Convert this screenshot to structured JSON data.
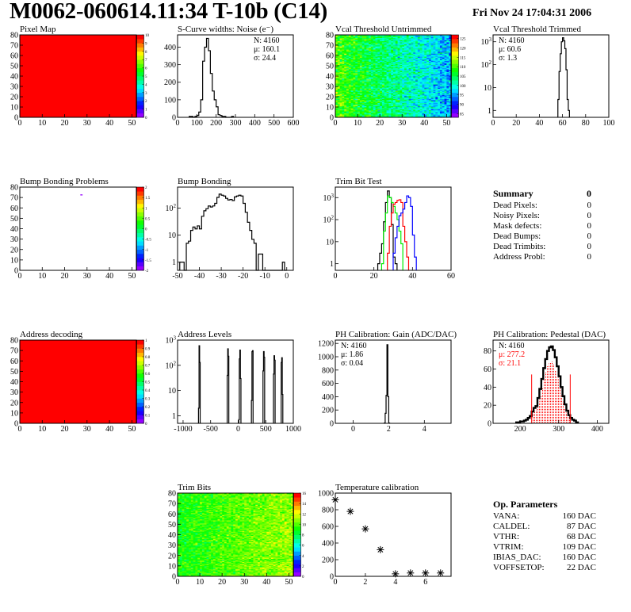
{
  "header": {
    "title": "M0062-060614.11:34 T-10b (C14)",
    "date": "Fri Nov 24 17:04:31 2006"
  },
  "summary": {
    "title": "Summary",
    "total": "0",
    "items": [
      {
        "label": "Dead Pixels:",
        "value": "0"
      },
      {
        "label": "Noisy Pixels:",
        "value": "0"
      },
      {
        "label": "Mask defects:",
        "value": "0"
      },
      {
        "label": "Dead Bumps:",
        "value": "0"
      },
      {
        "label": "Dead Trimbits:",
        "value": "0"
      },
      {
        "label": "Address Probl:",
        "value": "0"
      }
    ]
  },
  "op_parameters": {
    "title": "Op. Parameters",
    "items": [
      {
        "label": "VANA:",
        "value": "160 DAC"
      },
      {
        "label": "CALDEL:",
        "value": "87 DAC"
      },
      {
        "label": "VTHR:",
        "value": "68 DAC"
      },
      {
        "label": "VTRIM:",
        "value": "109 DAC"
      },
      {
        "label": "IBIAS_DAC:",
        "value": "160 DAC"
      },
      {
        "label": "VOFFSETOP:",
        "value": "22 DAC"
      }
    ]
  },
  "colors": {
    "black": "#000000",
    "red": "#ff0000",
    "green": "#00ee00",
    "blue": "#0000ff"
  },
  "chart_data": [
    {
      "id": "pixel-map",
      "type": "heatmap",
      "title": "Pixel Map",
      "nx": 52,
      "ny": 80,
      "xlim": [
        0,
        52
      ],
      "ylim": [
        0,
        80
      ],
      "xticks": [
        0,
        10,
        20,
        30,
        40,
        50
      ],
      "yticks": [
        0,
        10,
        20,
        30,
        40,
        50,
        60,
        70,
        80
      ],
      "zlim": [
        0,
        10
      ],
      "zticks": [
        0,
        1,
        2,
        3,
        4,
        5,
        6,
        7,
        8,
        9,
        10
      ],
      "uniform": 10
    },
    {
      "id": "s-curve-widths",
      "type": "hist",
      "title": "S-Curve widths: Noise (e⁻)",
      "xlim": [
        0,
        600
      ],
      "ylim": [
        0,
        470
      ],
      "xticks": [
        0,
        100,
        200,
        300,
        400,
        500,
        600
      ],
      "yticks": [
        0,
        100,
        200,
        300,
        400
      ],
      "series": [
        {
          "color": "#000000",
          "start": 60,
          "width": 10,
          "values": [
            5,
            5,
            0,
            5,
            10,
            30,
            100,
            320,
            400,
            450,
            380,
            250,
            150,
            100,
            60,
            15,
            10,
            5,
            5,
            0,
            0,
            0,
            5
          ]
        }
      ],
      "stats": {
        "position": "top-right",
        "lines": [
          {
            "text": "N: 4160"
          },
          {
            "text": "μ: 160.1"
          },
          {
            "text": "σ: 24.4"
          }
        ]
      }
    },
    {
      "id": "vcal-threshold-untrimmed",
      "type": "heatmap",
      "title": "Vcal Threshold Untrimmed",
      "nx": 52,
      "ny": 80,
      "xlim": [
        0,
        52
      ],
      "ylim": [
        0,
        80
      ],
      "xticks": [
        0,
        10,
        20,
        30,
        40,
        50
      ],
      "yticks": [
        0,
        10,
        20,
        30,
        40,
        50,
        60,
        70,
        80
      ],
      "zlim": [
        83,
        127
      ],
      "zticks": [
        85,
        90,
        95,
        100,
        105,
        110,
        115,
        120,
        125
      ],
      "trend": {
        "left_mean": 110,
        "right_mean": 96,
        "noise": 4.5,
        "seed": 7
      }
    },
    {
      "id": "vcal-threshold-trimmed",
      "type": "hist",
      "title": "Vcal Threshold Trimmed",
      "log": true,
      "xlim": [
        0,
        100
      ],
      "ylim": [
        0.5,
        2000
      ],
      "xticks": [
        0,
        20,
        40,
        60,
        80,
        100
      ],
      "yticks": [
        1,
        10,
        100,
        1000
      ],
      "series": [
        {
          "color": "#000000",
          "start": 56,
          "width": 1,
          "values": [
            3,
            50,
            300,
            1000,
            1500,
            1100,
            500,
            60,
            3,
            1
          ]
        }
      ],
      "stats": {
        "position": "top-left",
        "lines": [
          {
            "text": "N: 4160"
          },
          {
            "text": "μ: 60.6"
          },
          {
            "text": "σ:  1.3"
          }
        ]
      }
    },
    {
      "id": "bump-bonding-problems",
      "type": "heatmap",
      "title": "Bump Bonding Problems",
      "nx": 52,
      "ny": 80,
      "xlim": [
        0,
        52
      ],
      "ylim": [
        0,
        80
      ],
      "xticks": [
        0,
        10,
        20,
        30,
        40,
        50
      ],
      "yticks": [
        0,
        10,
        20,
        30,
        40,
        50,
        60,
        70,
        80
      ],
      "zlim": [
        -2,
        2
      ],
      "zticks": [
        -2,
        -1.5,
        -1,
        -0.5,
        0,
        0.5,
        1,
        1.5,
        2
      ],
      "empty": true,
      "cells": [
        {
          "x": 27,
          "y": 72,
          "z": -2
        }
      ]
    },
    {
      "id": "bump-bonding",
      "type": "hist",
      "title": "Bump Bonding",
      "log": true,
      "xlim": [
        -50,
        3
      ],
      "ylim": [
        0.5,
        600
      ],
      "xticks": [
        -50,
        -40,
        -30,
        -20,
        -10,
        0
      ],
      "yticks": [
        1,
        10,
        100
      ],
      "series": [
        {
          "color": "#000000",
          "start": -49,
          "width": 1,
          "values": [
            1,
            1,
            0,
            5,
            6,
            15,
            20,
            17,
            22,
            17,
            50,
            80,
            95,
            120,
            110,
            120,
            150,
            250,
            330,
            300,
            280,
            230,
            200,
            210,
            190,
            260,
            280,
            300,
            280,
            150,
            70,
            30,
            15,
            7,
            5,
            0,
            2,
            2,
            0,
            0,
            0,
            0,
            0,
            0,
            0,
            0,
            0,
            1,
            0
          ]
        }
      ]
    },
    {
      "id": "trim-bit-test",
      "type": "hist",
      "title": "Trim Bit Test",
      "log": true,
      "xlim": [
        0,
        60
      ],
      "ylim": [
        0.5,
        3000
      ],
      "xticks": [
        0,
        20,
        40,
        60
      ],
      "yticks": [
        1,
        10,
        100,
        1000
      ],
      "series": [
        {
          "color": "#000000",
          "start": 22,
          "width": 1,
          "values": [
            1,
            3,
            8,
            80,
            600,
            2000,
            1000,
            60,
            2,
            1
          ]
        },
        {
          "color": "#00ee00",
          "start": 24,
          "width": 1,
          "values": [
            1,
            30,
            200,
            1200,
            1000,
            600,
            400,
            200,
            100,
            30,
            8
          ]
        },
        {
          "color": "#ff0000",
          "start": 27,
          "width": 1,
          "values": [
            3,
            50,
            200,
            500,
            600,
            750,
            800,
            600,
            50,
            10,
            2
          ]
        },
        {
          "color": "#0000ff",
          "start": 30,
          "width": 1,
          "values": [
            3,
            15,
            50,
            150,
            200,
            300,
            600,
            1200,
            1000,
            400,
            20,
            2
          ]
        }
      ]
    },
    {
      "id": "summary-pad",
      "type": "text"
    },
    {
      "id": "address-decoding",
      "type": "heatmap",
      "title": "Address decoding",
      "nx": 52,
      "ny": 80,
      "xlim": [
        0,
        52
      ],
      "ylim": [
        0,
        80
      ],
      "xticks": [
        0,
        10,
        20,
        30,
        40,
        50
      ],
      "yticks": [
        0,
        10,
        20,
        30,
        40,
        50,
        60,
        70,
        80
      ],
      "zlim": [
        0,
        1
      ],
      "zticks": [
        0,
        0.1,
        0.2,
        0.3,
        0.4,
        0.5,
        0.6,
        0.7,
        0.8,
        0.9,
        1
      ],
      "uniform": 1
    },
    {
      "id": "address-levels",
      "type": "hist",
      "title": "Address Levels",
      "log": true,
      "xlim": [
        -1100,
        1000
      ],
      "ylim": [
        0.5,
        1000
      ],
      "xticks": [
        -1000,
        -500,
        0,
        500,
        1000
      ],
      "yticks": [
        1,
        10,
        100,
        1000
      ],
      "series": [
        {
          "color": "#000000",
          "start": -720,
          "width": 10,
          "values": [
            2,
            600,
            130
          ]
        },
        {
          "color": "#000000",
          "start": -200,
          "width": 10,
          "values": [
            40,
            450,
            230
          ]
        },
        {
          "color": "#000000",
          "start": 10,
          "width": 10,
          "values": [
            0.7,
            180,
            400,
            30
          ]
        },
        {
          "color": "#000000",
          "start": 240,
          "width": 10,
          "values": [
            4,
            350,
            380
          ]
        },
        {
          "color": "#000000",
          "start": 450,
          "width": 10,
          "values": [
            60,
            350,
            210
          ]
        },
        {
          "color": "#000000",
          "start": 640,
          "width": 10,
          "values": [
            45,
            240,
            160
          ]
        },
        {
          "color": "#000000",
          "start": 780,
          "width": 10,
          "values": [
            130,
            200,
            7
          ]
        }
      ]
    },
    {
      "id": "ph-calibration-gain",
      "type": "hist",
      "title": "PH Calibration: Gain (ADC/DAC)",
      "xlim": [
        -1,
        5.5
      ],
      "ylim": [
        0,
        1250
      ],
      "xticks": [
        0,
        2,
        4
      ],
      "yticks": [
        0,
        200,
        400,
        600,
        800,
        1000,
        1200
      ],
      "series": [
        {
          "color": "#000000",
          "start": 1.75,
          "width": 0.05,
          "values": [
            5,
            150,
            420,
            1180,
            400,
            5
          ]
        }
      ],
      "stats": {
        "position": "top-left",
        "lines": [
          {
            "text": "N: 4160"
          },
          {
            "text": "μ: 1.86"
          },
          {
            "text": "σ: 0.04"
          }
        ]
      }
    },
    {
      "id": "ph-calibration-pedestal",
      "type": "hist",
      "title": "PH Calibration: Pedestal (DAC)",
      "xlim": [
        130,
        430
      ],
      "ylim": [
        0,
        92
      ],
      "xticks": [
        200,
        300,
        400
      ],
      "yticks": [
        0,
        20,
        40,
        60,
        80
      ],
      "series": [
        {
          "color": "#000000",
          "start": 190,
          "width": 5,
          "thick": true,
          "values": [
            1,
            1,
            2,
            2,
            3,
            4,
            6,
            8,
            13,
            17,
            19,
            28,
            38,
            49,
            61,
            71,
            80,
            84,
            85,
            81,
            73,
            63,
            52,
            40,
            30,
            21,
            14,
            9,
            6,
            4,
            3,
            1
          ]
        }
      ],
      "fill": {
        "color": "#ff0000",
        "range": [
          230,
          330
        ],
        "scale": 0.8
      },
      "markers": [
        {
          "x": 230,
          "y": 54
        },
        {
          "x": 330,
          "y": 54
        }
      ],
      "stats": {
        "position": "top-left",
        "lines": [
          {
            "text": "N: 4160"
          },
          {
            "text": "μ: 277.2",
            "color": "#ff0000"
          },
          {
            "text": "σ: 21.1",
            "color": "#ff0000"
          }
        ]
      }
    },
    {
      "id": "empty-pad",
      "type": "text"
    },
    {
      "id": "trim-bits",
      "type": "heatmap",
      "title": "Trim Bits",
      "nx": 52,
      "ny": 80,
      "xlim": [
        0,
        52
      ],
      "ylim": [
        0,
        80
      ],
      "xticks": [
        0,
        10,
        20,
        30,
        40,
        50
      ],
      "yticks": [
        0,
        10,
        20,
        30,
        40,
        50,
        60,
        70,
        80
      ],
      "zlim": [
        0,
        16
      ],
      "zticks": [
        0,
        2,
        4,
        6,
        8,
        10,
        12,
        14,
        16
      ],
      "trend": {
        "left_mean": 9,
        "right_mean": 11,
        "noise": 1.1,
        "seed": 3
      }
    },
    {
      "id": "temperature-calibration",
      "type": "scatter",
      "title": "Temperature calibration",
      "xlim": [
        0,
        7.7
      ],
      "ylim": [
        0,
        1000
      ],
      "xticks": [
        0,
        2,
        4,
        6
      ],
      "yticks": [
        0,
        200,
        400,
        600,
        800,
        1000
      ],
      "x": [
        0,
        1,
        2,
        3,
        4,
        5,
        6,
        7
      ],
      "y": [
        920,
        780,
        570,
        320,
        30,
        40,
        40,
        40
      ]
    }
  ]
}
